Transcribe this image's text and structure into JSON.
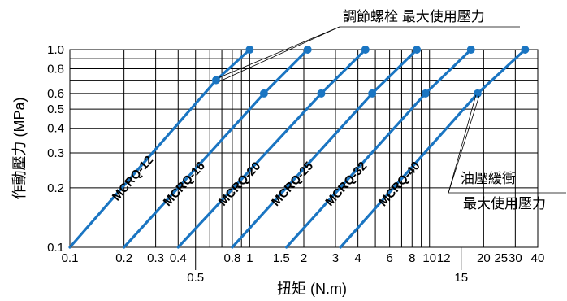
{
  "chart_data": {
    "type": "line",
    "xscale": "log",
    "yscale": "log",
    "xlim": [
      0.1,
      40
    ],
    "ylim": [
      0.1,
      1.0
    ],
    "grid": true,
    "xlabel": "扭矩 (N.m)",
    "ylabel": "作動壓力 (MPa)",
    "x_ticks_upper": [
      "0.1",
      "0.2",
      "0.3",
      "0.4",
      "0.8",
      "1",
      "1.5",
      "2",
      "3",
      "4",
      "6",
      "8",
      "10",
      "12",
      "20",
      "25",
      "30",
      "40"
    ],
    "x_ticks_lower": [
      "0.5",
      "15"
    ],
    "y_ticks": [
      "0.1",
      "0.2",
      "0.3",
      "0.4",
      "0.5",
      "0.6",
      "0.8",
      "1.0"
    ],
    "series": [
      {
        "name": "MCRQ-12",
        "x": [
          0.1,
          0.65,
          1.0
        ],
        "y": [
          0.1,
          0.7,
          1.0
        ]
      },
      {
        "name": "MCRQ-16",
        "x": [
          0.2,
          1.2,
          2.1
        ],
        "y": [
          0.1,
          0.6,
          1.0
        ]
      },
      {
        "name": "MCRQ-20",
        "x": [
          0.4,
          2.5,
          4.4
        ],
        "y": [
          0.1,
          0.6,
          1.0
        ]
      },
      {
        "name": "MCRQ-25",
        "x": [
          0.8,
          4.8,
          8.5
        ],
        "y": [
          0.1,
          0.6,
          1.0
        ]
      },
      {
        "name": "MCRQ-32",
        "x": [
          1.6,
          9.5,
          17
        ],
        "y": [
          0.1,
          0.6,
          1.0
        ]
      },
      {
        "name": "MCRQ-40",
        "x": [
          3.2,
          18.5,
          34
        ],
        "y": [
          0.1,
          0.6,
          1.0
        ]
      }
    ],
    "annotations": {
      "adjust_screw": "調節螺栓 最大使用壓力",
      "oil_line1": "油壓緩衝",
      "oil_line2": "最大使用壓力"
    }
  }
}
